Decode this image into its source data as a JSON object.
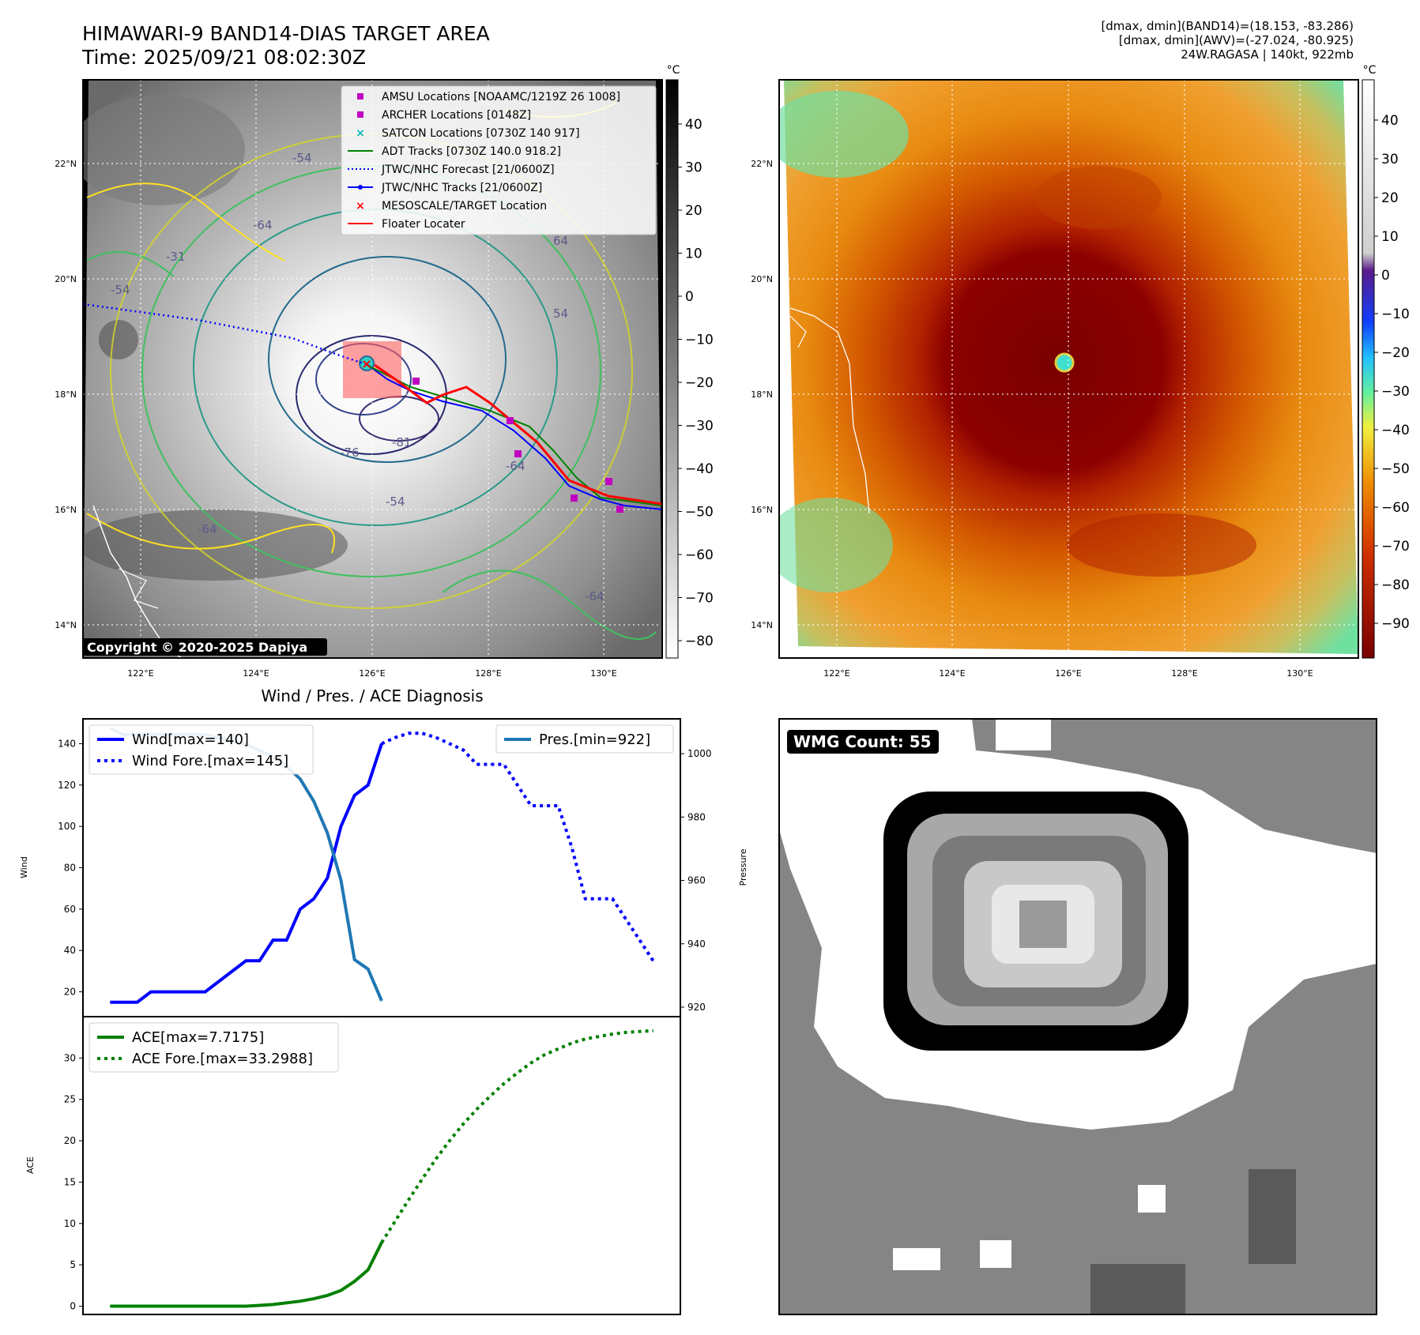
{
  "header": {
    "title": "HIMAWARI-9 BAND14-DIAS TARGET AREA",
    "time": "Time: 2025/09/21 08:02:30Z",
    "info_line1": "[dmax, dmin](BAND14)=(18.153, -83.286)",
    "info_line2": "[dmax, dmin](AWV)=(-27.024, -80.925)",
    "info_line3": "24W.RAGASA | 140kt, 922mb"
  },
  "map_axes": {
    "lat_labels": [
      "22°N",
      "20°N",
      "18°N",
      "16°N",
      "14°N"
    ],
    "lon_labels": [
      "122°E",
      "124°E",
      "126°E",
      "128°E",
      "130°E"
    ],
    "unit": "°C"
  },
  "colorbar_left": {
    "ticks": [
      "40",
      "30",
      "20",
      "10",
      "0",
      "−10",
      "−20",
      "−30",
      "−40",
      "−50",
      "−60",
      "−70",
      "−80"
    ]
  },
  "colorbar_right": {
    "ticks": [
      "40",
      "30",
      "20",
      "10",
      "0",
      "−10",
      "−20",
      "−30",
      "−40",
      "−50",
      "−60",
      "−70",
      "−80",
      "−90"
    ]
  },
  "legend_map": [
    {
      "label": "AMSU Locations [NOAAMC/1219Z 26 1008]",
      "marker": "square",
      "color": "#c000c0"
    },
    {
      "label": "ARCHER Locations [0148Z]",
      "marker": "square",
      "color": "#c000c0"
    },
    {
      "label": "SATCON Locations [0730Z 140 917]",
      "marker": "x",
      "color": "#00b8b8"
    },
    {
      "label": "ADT Tracks [0730Z 140.0 918.2]",
      "marker": "line",
      "color": "#008000"
    },
    {
      "label": "JTWC/NHC Forecast [21/0600Z]",
      "marker": "dotted",
      "color": "#0000ff"
    },
    {
      "label": "JTWC/NHC Tracks [21/0600Z]",
      "marker": "line-dot",
      "color": "#0000ff"
    },
    {
      "label": "MESOSCALE/TARGET Location",
      "marker": "x",
      "color": "#ff0000"
    },
    {
      "label": "Floater Locater",
      "marker": "line",
      "color": "#ff0000"
    }
  ],
  "contour_labels": [
    "-31",
    "-54",
    "-54",
    "-54",
    "-64",
    "-64",
    "-64",
    "-64",
    "-76",
    "-81",
    "54",
    "64"
  ],
  "copyright": "Copyright © 2020-2025 Dapiya",
  "wmg": {
    "label": "WMG Count: 55"
  },
  "chart_data": [
    {
      "type": "line",
      "title": "Wind / Pres. / ACE Diagnosis",
      "ylabel": "Wind",
      "ylabel_right": "Pressure",
      "ylim": [
        8,
        152
      ],
      "ylim_right": [
        917,
        1011
      ],
      "yticks": [
        20,
        40,
        60,
        80,
        100,
        120,
        140
      ],
      "yticks_right": [
        920,
        940,
        960,
        980,
        1000
      ],
      "legend": [
        "Wind[max=140]",
        "Wind Fore.[max=145]",
        "Pres.[min=922]"
      ],
      "series": [
        {
          "name": "Wind[max=140]",
          "axis": "left",
          "style": "solid",
          "color": "#0000ff",
          "x": [
            0,
            1,
            2,
            3,
            4,
            5,
            6,
            7,
            8,
            9,
            10,
            11,
            12,
            13,
            14,
            15,
            16,
            17,
            18,
            19,
            20
          ],
          "values": [
            15,
            15,
            15,
            20,
            20,
            20,
            20,
            20,
            25,
            30,
            35,
            35,
            45,
            45,
            60,
            65,
            75,
            100,
            115,
            120,
            140
          ]
        },
        {
          "name": "Wind Fore.[max=145]",
          "axis": "left",
          "style": "dotted",
          "color": "#0000ff",
          "x": [
            20,
            21,
            22,
            23,
            24,
            25,
            26,
            27,
            28,
            29,
            30,
            31,
            32,
            33,
            34,
            35,
            36,
            37,
            38,
            39,
            40
          ],
          "values": [
            140,
            143,
            145,
            145,
            143,
            140,
            137,
            130,
            130,
            130,
            120,
            110,
            110,
            110,
            90,
            65,
            65,
            65,
            55,
            45,
            35
          ]
        },
        {
          "name": "Pres.[min=922]",
          "axis": "right",
          "style": "solid",
          "color": "#1f77b4",
          "x": [
            0,
            1,
            2,
            3,
            4,
            5,
            6,
            7,
            8,
            9,
            10,
            11,
            12,
            13,
            14,
            15,
            16,
            17,
            18,
            19,
            20
          ],
          "values": [
            1008,
            1006,
            1006,
            1006,
            1006,
            1006,
            1006,
            1006,
            1005,
            1004,
            1003,
            1001,
            999,
            996,
            992,
            985,
            975,
            960,
            935,
            932,
            922
          ]
        }
      ]
    },
    {
      "type": "line",
      "ylabel": "ACE",
      "ylim": [
        -1,
        35
      ],
      "yticks": [
        0,
        5,
        10,
        15,
        20,
        25,
        30
      ],
      "legend": [
        "ACE[max=7.7175]",
        "ACE Fore.[max=33.2988]"
      ],
      "series": [
        {
          "name": "ACE[max=7.7175]",
          "style": "solid",
          "color": "#008000",
          "x": [
            0,
            1,
            2,
            3,
            4,
            5,
            6,
            7,
            8,
            9,
            10,
            11,
            12,
            13,
            14,
            15,
            16,
            17,
            18,
            19,
            20
          ],
          "values": [
            0,
            0,
            0,
            0,
            0,
            0,
            0,
            0,
            0,
            0,
            0,
            0.1,
            0.2,
            0.4,
            0.6,
            0.9,
            1.3,
            1.9,
            3.0,
            4.4,
            7.7
          ]
        },
        {
          "name": "ACE Fore.[max=33.2988]",
          "style": "dotted",
          "color": "#008000",
          "x": [
            20,
            21,
            22,
            23,
            24,
            25,
            26,
            27,
            28,
            29,
            30,
            31,
            32,
            33,
            34,
            35,
            36,
            37,
            38,
            39,
            40
          ],
          "values": [
            7.7,
            10.3,
            12.9,
            15.4,
            17.8,
            20.0,
            22.0,
            23.8,
            25.4,
            26.9,
            28.2,
            29.4,
            30.4,
            31.1,
            31.8,
            32.3,
            32.6,
            32.9,
            33.1,
            33.2,
            33.3
          ]
        }
      ]
    }
  ]
}
